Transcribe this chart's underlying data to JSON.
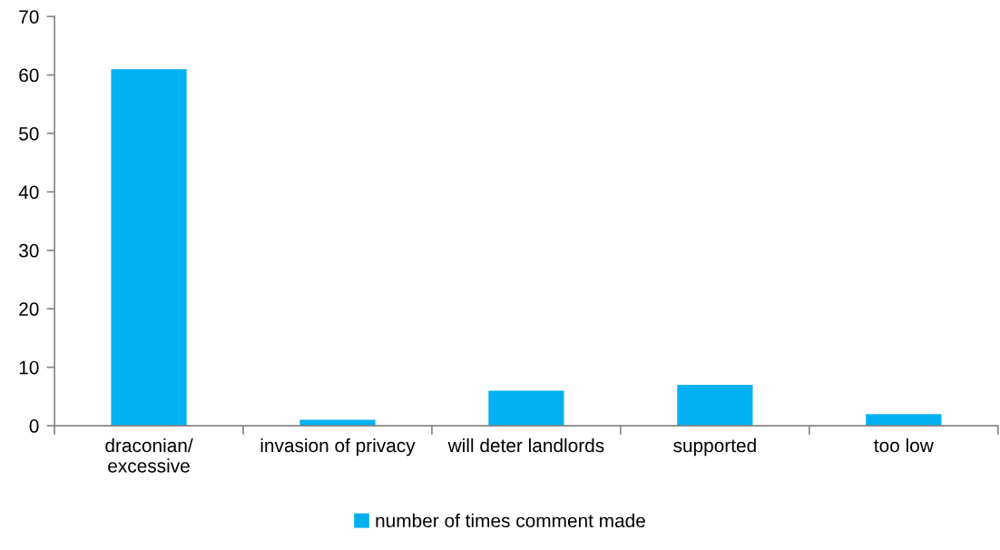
{
  "chart_data": {
    "type": "bar",
    "categories": [
      "draconian/\nexcessive",
      "invasion of privacy",
      "will deter landlords",
      "supported",
      "too low"
    ],
    "series": [
      {
        "name": "number of times comment made",
        "color": "#00b0f0",
        "values": [
          61,
          1,
          6,
          7,
          2
        ]
      }
    ],
    "ylim": [
      0,
      70
    ],
    "yticks": [
      0,
      10,
      20,
      30,
      40,
      50,
      60,
      70
    ],
    "legend": "bottom"
  }
}
